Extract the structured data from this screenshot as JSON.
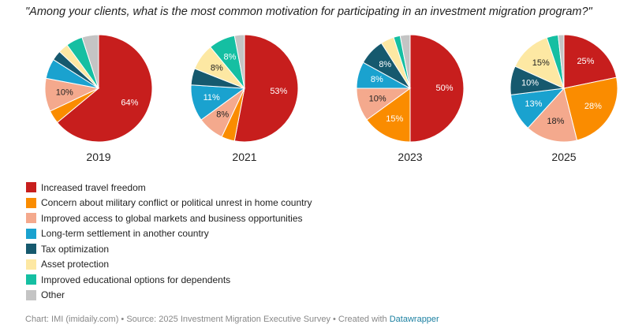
{
  "title": "\"Among your clients, what is the most common motivation for participating in an investment migration program?\"",
  "colors": {
    "Increased travel freedom": "#c71e1d",
    "Concern about military conflict or political unrest in home country": "#fa8c00",
    "Improved access to global markets and business opportunities": "#f4a98d",
    "Long-term settlement in another country": "#1aa2cf",
    "Tax optimization": "#16596e",
    "Asset protection": "#fde8a3",
    "Improved educational options for dependents": "#15bfa2",
    "Other": "#c4c4c4"
  },
  "legend": [
    "Increased travel freedom",
    "Concern about military conflict or political unrest in home country",
    "Improved access to global markets and business opportunities",
    "Long-term settlement in another country",
    "Tax optimization",
    "Asset protection",
    "Improved educational options for dependents",
    "Other"
  ],
  "chart_data": [
    {
      "type": "pie",
      "title": "2019",
      "categories": [
        "Increased travel freedom",
        "Concern about military conflict or political unrest in home country",
        "Improved access to global markets and business opportunities",
        "Long-term settlement in another country",
        "Tax optimization",
        "Asset protection",
        "Improved educational options for dependents",
        "Other"
      ],
      "values": [
        64,
        4,
        10,
        6,
        3,
        3,
        5,
        5
      ],
      "labels": [
        "64%",
        "",
        "10%",
        "",
        "",
        "",
        "",
        ""
      ]
    },
    {
      "type": "pie",
      "title": "2021",
      "categories": [
        "Increased travel freedom",
        "Concern about military conflict or political unrest in home country",
        "Improved access to global markets and business opportunities",
        "Long-term settlement in another country",
        "Tax optimization",
        "Asset protection",
        "Improved educational options for dependents",
        "Other"
      ],
      "values": [
        53,
        4,
        8,
        11,
        5,
        8,
        8,
        3
      ],
      "labels": [
        "53%",
        "",
        "8%",
        "11%",
        "",
        "8%",
        "8%",
        ""
      ]
    },
    {
      "type": "pie",
      "title": "2023",
      "categories": [
        "Increased travel freedom",
        "Concern about military conflict or political unrest in home country",
        "Improved access to global markets and business opportunities",
        "Long-term settlement in another country",
        "Tax optimization",
        "Asset protection",
        "Improved educational options for dependents",
        "Other"
      ],
      "values": [
        50,
        15,
        10,
        8,
        8,
        4,
        2,
        3
      ],
      "labels": [
        "50%",
        "15%",
        "10%",
        "8%",
        "8%",
        "",
        "",
        ""
      ]
    },
    {
      "type": "pie",
      "title": "2025",
      "categories": [
        "Increased travel freedom",
        "Concern about military conflict or political unrest in home country",
        "Improved access to global markets and business opportunities",
        "Long-term settlement in another country",
        "Tax optimization",
        "Asset protection",
        "Improved educational options for dependents",
        "Other"
      ],
      "values": [
        25,
        28,
        18,
        13,
        10,
        15,
        4,
        2
      ],
      "labels": [
        "25%",
        "28%",
        "18%",
        "13%",
        "10%",
        "15%",
        "",
        ""
      ]
    }
  ],
  "footer": {
    "text": "Chart: IMI (imidaily.com) • Source: 2025 Investment Migration Executive Survey • Created with ",
    "link": "Datawrapper"
  }
}
